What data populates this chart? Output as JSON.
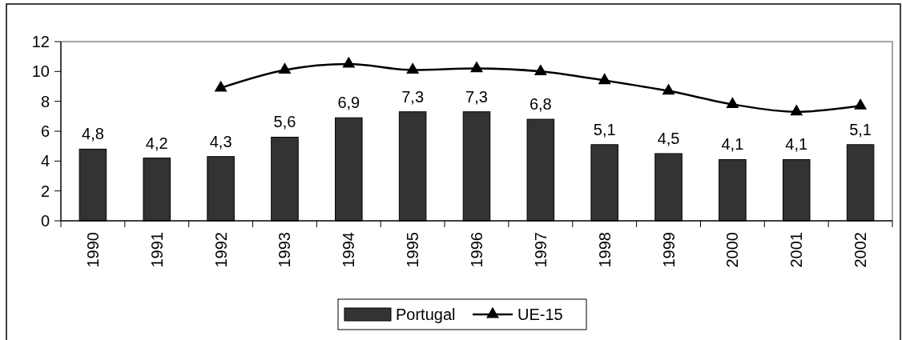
{
  "chart_data": {
    "type": "bar",
    "categories": [
      "1990",
      "1991",
      "1992",
      "1993",
      "1994",
      "1995",
      "1996",
      "1997",
      "1998",
      "1999",
      "2000",
      "2001",
      "2002"
    ],
    "series": [
      {
        "name": "Portugal",
        "color": "#333333",
        "values": [
          4.8,
          4.2,
          4.3,
          5.6,
          6.9,
          7.3,
          7.3,
          6.8,
          5.1,
          4.5,
          4.1,
          4.1,
          5.1
        ],
        "value_labels": [
          "4,8",
          "4,2",
          "4,3",
          "5,6",
          "6,9",
          "7,3",
          "7,3",
          "6,8",
          "5,1",
          "4,5",
          "4,1",
          "4,1",
          "5,1"
        ]
      },
      {
        "name": "UE-15",
        "type": "line",
        "color": "#000000",
        "marker": "triangle",
        "values": [
          null,
          null,
          8.9,
          10.1,
          10.5,
          10.1,
          10.2,
          10.0,
          9.4,
          8.7,
          7.8,
          7.3,
          7.7
        ]
      }
    ],
    "ylim": [
      0,
      12
    ],
    "yticks": [
      0,
      2,
      4,
      6,
      8,
      10,
      12
    ],
    "grid": false,
    "legend": "bottom"
  }
}
